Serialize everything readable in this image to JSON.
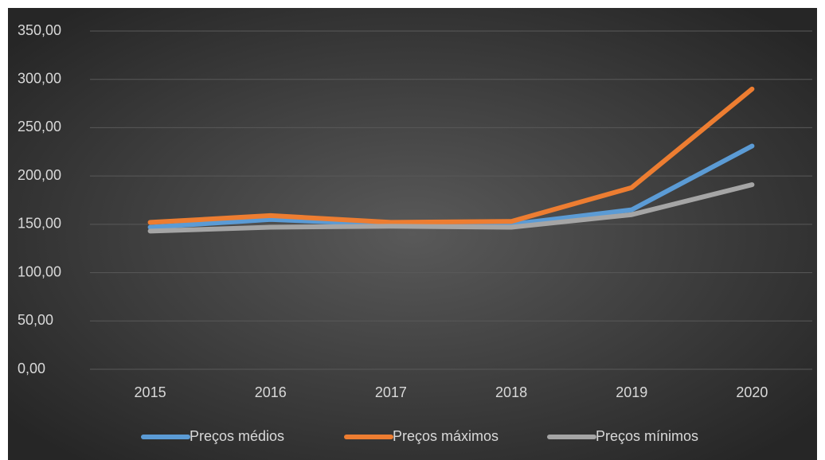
{
  "chart_data": {
    "type": "line",
    "categories": [
      "2015",
      "2016",
      "2017",
      "2018",
      "2019",
      "2020"
    ],
    "series": [
      {
        "name": "Preços médios",
        "color": "#5b9bd5",
        "values": [
          147,
          155,
          150,
          150,
          165,
          231
        ]
      },
      {
        "name": "Preços máximos",
        "color": "#ed7d31",
        "values": [
          152,
          159,
          152,
          153,
          188,
          290
        ]
      },
      {
        "name": "Preços mínimos",
        "color": "#a5a5a5",
        "values": [
          143,
          147,
          148,
          147,
          160,
          191
        ]
      }
    ],
    "ylim": [
      0,
      350
    ],
    "yticks": [
      {
        "value": 0,
        "label": "0,00"
      },
      {
        "value": 50,
        "label": "50,00"
      },
      {
        "value": 100,
        "label": "100,00"
      },
      {
        "value": 150,
        "label": "150,00"
      },
      {
        "value": 200,
        "label": "200,00"
      },
      {
        "value": 250,
        "label": "250,00"
      },
      {
        "value": 300,
        "label": "300,00"
      },
      {
        "value": 350,
        "label": "350,00"
      }
    ],
    "grid": true,
    "legend": "bottom"
  }
}
